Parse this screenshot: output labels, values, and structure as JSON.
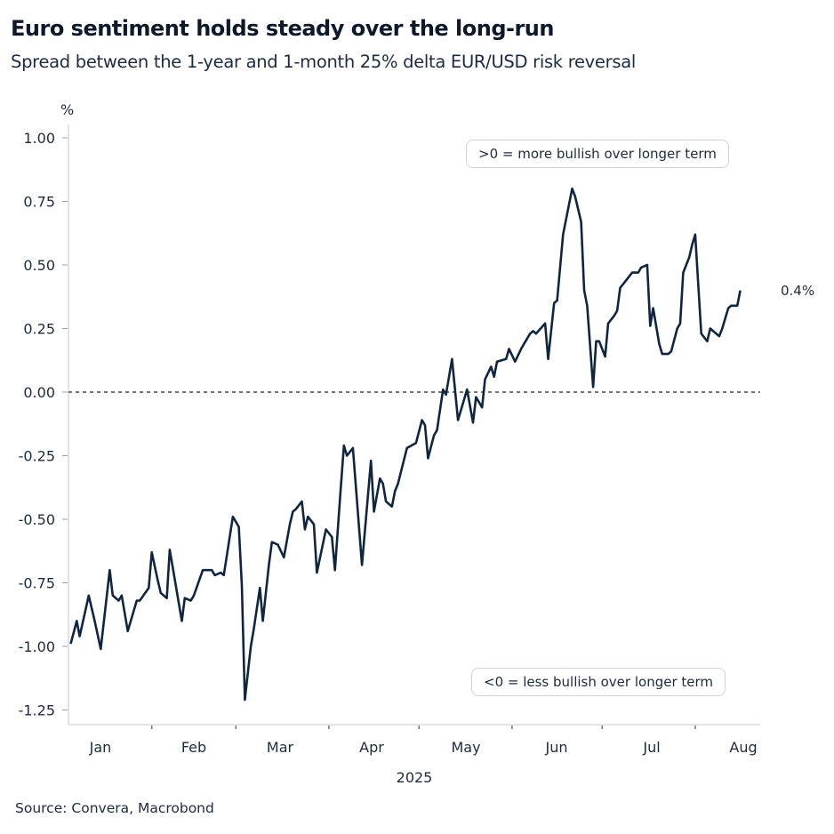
{
  "title": "Euro sentiment holds steady over the long-run",
  "subtitle": "Spread between the 1-year and 1-month 25% delta EUR/USD risk reversal",
  "source": "Source: Convera, Macrobond",
  "chart_data": {
    "type": "line",
    "title": "Euro sentiment holds steady over the long-run",
    "subtitle": "Spread between the 1-year and 1-month 25% delta EUR/USD risk reversal",
    "ylabel": "%",
    "xlabel": "2025",
    "ylim": [
      -1.3,
      1.05
    ],
    "yticks": [
      1.0,
      0.75,
      0.5,
      0.25,
      0.0,
      -0.25,
      -0.5,
      -0.75,
      -1.0,
      -1.25
    ],
    "ytick_labels": [
      "1.00",
      "0.75",
      "0.50",
      "0.25",
      "0.00",
      "-0.25",
      "-0.50",
      "-0.75",
      "-1.00",
      "-1.25"
    ],
    "xtick_labels": [
      "Jan",
      "Feb",
      "Mar",
      "Apr",
      "May",
      "Jun",
      "Jul",
      "Aug"
    ],
    "grid": false,
    "reference_line": 0,
    "line_color": "#0f2640",
    "annotations": {
      "upper": ">0 = more bullish over longer term",
      "lower": "<0 = less bullish over longer term",
      "end_value": "0.4%"
    },
    "series": [
      {
        "points": [
          [
            "2025-01-05",
            -0.99
          ],
          [
            "2025-01-07",
            -0.9
          ],
          [
            "2025-01-08",
            -0.96
          ],
          [
            "2025-01-11",
            -0.8
          ],
          [
            "2025-01-13",
            -0.9
          ],
          [
            "2025-01-15",
            -1.01
          ],
          [
            "2025-01-18",
            -0.7
          ],
          [
            "2025-01-19",
            -0.8
          ],
          [
            "2025-01-21",
            -0.82
          ],
          [
            "2025-01-22",
            -0.8
          ],
          [
            "2025-01-24",
            -0.94
          ],
          [
            "2025-01-27",
            -0.82
          ],
          [
            "2025-01-28",
            -0.82
          ],
          [
            "2025-01-31",
            -0.77
          ],
          [
            "2025-02-01",
            -0.63
          ],
          [
            "2025-02-03",
            -0.74
          ],
          [
            "2025-02-04",
            -0.79
          ],
          [
            "2025-02-06",
            -0.81
          ],
          [
            "2025-02-07",
            -0.62
          ],
          [
            "2025-02-11",
            -0.9
          ],
          [
            "2025-02-12",
            -0.81
          ],
          [
            "2025-02-14",
            -0.82
          ],
          [
            "2025-02-15",
            -0.8
          ],
          [
            "2025-02-18",
            -0.7
          ],
          [
            "2025-02-21",
            -0.7
          ],
          [
            "2025-02-22",
            -0.72
          ],
          [
            "2025-02-24",
            -0.71
          ],
          [
            "2025-02-25",
            -0.72
          ],
          [
            "2025-02-28",
            -0.49
          ],
          [
            "2025-03-02",
            -0.53
          ],
          [
            "2025-03-03",
            -0.76
          ],
          [
            "2025-03-04",
            -1.21
          ],
          [
            "2025-03-06",
            -1.0
          ],
          [
            "2025-03-07",
            -0.93
          ],
          [
            "2025-03-09",
            -0.77
          ],
          [
            "2025-03-10",
            -0.9
          ],
          [
            "2025-03-12",
            -0.68
          ],
          [
            "2025-03-13",
            -0.59
          ],
          [
            "2025-03-15",
            -0.6
          ],
          [
            "2025-03-17",
            -0.65
          ],
          [
            "2025-03-19",
            -0.52
          ],
          [
            "2025-03-20",
            -0.47
          ],
          [
            "2025-03-21",
            -0.46
          ],
          [
            "2025-03-23",
            -0.43
          ],
          [
            "2025-03-24",
            -0.54
          ],
          [
            "2025-03-25",
            -0.49
          ],
          [
            "2025-03-27",
            -0.52
          ],
          [
            "2025-03-28",
            -0.71
          ],
          [
            "2025-03-31",
            -0.54
          ],
          [
            "2025-04-02",
            -0.57
          ],
          [
            "2025-04-03",
            -0.7
          ],
          [
            "2025-04-05",
            -0.37
          ],
          [
            "2025-04-06",
            -0.21
          ],
          [
            "2025-04-07",
            -0.25
          ],
          [
            "2025-04-09",
            -0.22
          ],
          [
            "2025-04-12",
            -0.68
          ],
          [
            "2025-04-15",
            -0.27
          ],
          [
            "2025-04-16",
            -0.47
          ],
          [
            "2025-04-18",
            -0.34
          ],
          [
            "2025-04-19",
            -0.36
          ],
          [
            "2025-04-20",
            -0.43
          ],
          [
            "2025-04-22",
            -0.45
          ],
          [
            "2025-04-23",
            -0.39
          ],
          [
            "2025-04-24",
            -0.36
          ],
          [
            "2025-04-27",
            -0.22
          ],
          [
            "2025-04-30",
            -0.2
          ],
          [
            "2025-05-02",
            -0.11
          ],
          [
            "2025-05-03",
            -0.13
          ],
          [
            "2025-05-04",
            -0.26
          ],
          [
            "2025-05-06",
            -0.17
          ],
          [
            "2025-05-07",
            -0.15
          ],
          [
            "2025-05-09",
            0.01
          ],
          [
            "2025-05-10",
            -0.01
          ],
          [
            "2025-05-12",
            0.13
          ],
          [
            "2025-05-14",
            -0.11
          ],
          [
            "2025-05-17",
            0.01
          ],
          [
            "2025-05-19",
            -0.12
          ],
          [
            "2025-05-20",
            -0.02
          ],
          [
            "2025-05-22",
            -0.06
          ],
          [
            "2025-05-23",
            0.05
          ],
          [
            "2025-05-25",
            0.1
          ],
          [
            "2025-05-26",
            0.06
          ],
          [
            "2025-05-27",
            0.12
          ],
          [
            "2025-05-30",
            0.13
          ],
          [
            "2025-05-31",
            0.17
          ],
          [
            "2025-06-02",
            0.12
          ],
          [
            "2025-06-04",
            0.17
          ],
          [
            "2025-06-05",
            0.19
          ],
          [
            "2025-06-07",
            0.23
          ],
          [
            "2025-06-08",
            0.24
          ],
          [
            "2025-06-09",
            0.23
          ],
          [
            "2025-06-12",
            0.27
          ],
          [
            "2025-06-13",
            0.13
          ],
          [
            "2025-06-15",
            0.35
          ],
          [
            "2025-06-16",
            0.36
          ],
          [
            "2025-06-18",
            0.62
          ],
          [
            "2025-06-19",
            0.68
          ],
          [
            "2025-06-21",
            0.8
          ],
          [
            "2025-06-22",
            0.77
          ],
          [
            "2025-06-24",
            0.67
          ],
          [
            "2025-06-25",
            0.4
          ],
          [
            "2025-06-26",
            0.34
          ],
          [
            "2025-06-28",
            0.02
          ],
          [
            "2025-06-29",
            0.2
          ],
          [
            "2025-06-30",
            0.2
          ],
          [
            "2025-07-02",
            0.14
          ],
          [
            "2025-07-03",
            0.27
          ],
          [
            "2025-07-05",
            0.3
          ],
          [
            "2025-07-06",
            0.32
          ],
          [
            "2025-07-07",
            0.41
          ],
          [
            "2025-07-09",
            0.44
          ],
          [
            "2025-07-11",
            0.47
          ],
          [
            "2025-07-13",
            0.47
          ],
          [
            "2025-07-14",
            0.49
          ],
          [
            "2025-07-16",
            0.5
          ],
          [
            "2025-07-17",
            0.26
          ],
          [
            "2025-07-18",
            0.33
          ],
          [
            "2025-07-20",
            0.19
          ],
          [
            "2025-07-21",
            0.15
          ],
          [
            "2025-07-23",
            0.15
          ],
          [
            "2025-07-24",
            0.16
          ],
          [
            "2025-07-26",
            0.25
          ],
          [
            "2025-07-27",
            0.27
          ],
          [
            "2025-07-28",
            0.47
          ],
          [
            "2025-07-30",
            0.53
          ],
          [
            "2025-07-31",
            0.58
          ],
          [
            "2025-08-01",
            0.62
          ],
          [
            "2025-08-03",
            0.23
          ],
          [
            "2025-08-05",
            0.2
          ],
          [
            "2025-08-06",
            0.25
          ],
          [
            "2025-08-09",
            0.22
          ],
          [
            "2025-08-10",
            0.25
          ],
          [
            "2025-08-12",
            0.33
          ],
          [
            "2025-08-13",
            0.34
          ],
          [
            "2025-08-15",
            0.34
          ],
          [
            "2025-08-16",
            0.4
          ]
        ]
      }
    ]
  }
}
